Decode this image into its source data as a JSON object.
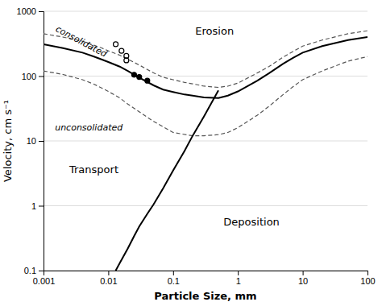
{
  "chart_data": {
    "type": "line",
    "xlabel": "Particle Size, mm",
    "ylabel": "Velocity, cm s⁻¹",
    "log": true,
    "grid": "y",
    "xlim": [
      0.001,
      100
    ],
    "ylim": [
      0.1,
      1000
    ],
    "xticks": [
      0.001,
      0.01,
      0.1,
      1,
      10,
      100
    ],
    "yticks": [
      0.1,
      1,
      10,
      100,
      1000
    ],
    "series": [
      {
        "type": "line",
        "line_style": "dashed",
        "color": "#555555",
        "x": [
          0.001,
          0.002,
          0.004,
          0.006,
          0.008,
          0.01,
          0.015,
          0.02,
          0.03,
          0.05,
          0.07,
          0.1,
          0.15,
          0.2,
          0.3,
          0.5,
          0.7,
          1.0,
          2.0,
          3.0,
          5.0,
          7.0,
          10.0,
          20.0,
          50.0,
          100.0
        ],
        "values": [
          450,
          400,
          345,
          300,
          270,
          245,
          210,
          183,
          148,
          112,
          96,
          88,
          80,
          76,
          70,
          67,
          70,
          78,
          112,
          140,
          196,
          238,
          290,
          360,
          450,
          500
        ]
      },
      {
        "type": "line",
        "line_style": "solid",
        "color": "#000000",
        "x": [
          0.001,
          0.002,
          0.004,
          0.006,
          0.008,
          0.01,
          0.015,
          0.02,
          0.03,
          0.05,
          0.07,
          0.1,
          0.15,
          0.2,
          0.3,
          0.5,
          0.7,
          1.0,
          2.0,
          3.0,
          5.0,
          7.0,
          10.0,
          20.0,
          50.0,
          100.0
        ],
        "values": [
          310,
          270,
          230,
          200,
          180,
          165,
          140,
          120,
          95,
          72,
          62,
          57,
          52,
          50,
          47,
          46,
          50,
          58,
          85,
          110,
          155,
          190,
          230,
          290,
          360,
          400
        ]
      },
      {
        "type": "line",
        "line_style": "dashed",
        "color": "#555555",
        "x": [
          0.001,
          0.002,
          0.004,
          0.006,
          0.008,
          0.01,
          0.015,
          0.02,
          0.05,
          0.1,
          0.2,
          0.3,
          0.5,
          0.7,
          1.0,
          2.0,
          3.0,
          5.0,
          7.0,
          10.0,
          20.0,
          50.0,
          100.0
        ],
        "values": [
          120,
          106,
          88,
          75,
          65,
          58,
          46,
          37,
          20,
          13.5,
          12.0,
          12.0,
          12.5,
          13.5,
          16,
          25,
          34,
          52,
          68,
          88,
          120,
          170,
          200
        ]
      },
      {
        "type": "line",
        "line_style": "solid",
        "color": "#000000",
        "x": [
          0.013,
          0.015,
          0.02,
          0.025,
          0.03,
          0.04,
          0.05,
          0.07,
          0.1,
          0.15,
          0.2,
          0.3,
          0.5
        ],
        "values": [
          0.1,
          0.13,
          0.22,
          0.34,
          0.48,
          0.75,
          1.05,
          1.85,
          3.5,
          7.0,
          12,
          24,
          60
        ]
      },
      {
        "type": "scatter",
        "marker": "open-circle",
        "color": "#000000",
        "x": [
          0.013,
          0.016,
          0.019,
          0.019
        ],
        "values": [
          310,
          245,
          205,
          175
        ]
      },
      {
        "type": "scatter",
        "marker": "circle",
        "color": "#000000",
        "x": [
          0.025,
          0.03,
          0.04
        ],
        "values": [
          105,
          97,
          85
        ]
      }
    ],
    "annotations": [
      {
        "text": "consolidated",
        "x": 0.0015,
        "y": 500
      },
      {
        "text": "unconsolidated",
        "x": 0.0015,
        "y": 16
      },
      {
        "text": "Erosion",
        "x": 0.22,
        "y": 480
      },
      {
        "text": "Transport",
        "x": 0.0025,
        "y": 3.5
      },
      {
        "text": "Deposition",
        "x": 0.6,
        "y": 0.55
      }
    ]
  }
}
